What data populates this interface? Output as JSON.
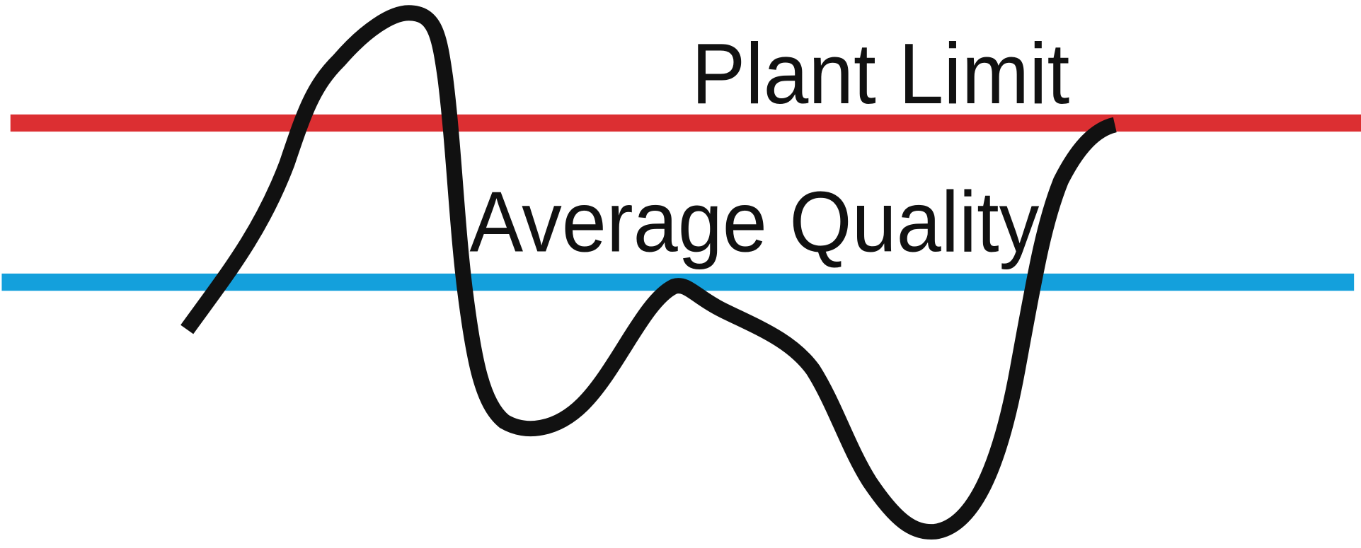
{
  "labels": {
    "upper": "Plant Limit",
    "lower": "Average Quality"
  }
}
